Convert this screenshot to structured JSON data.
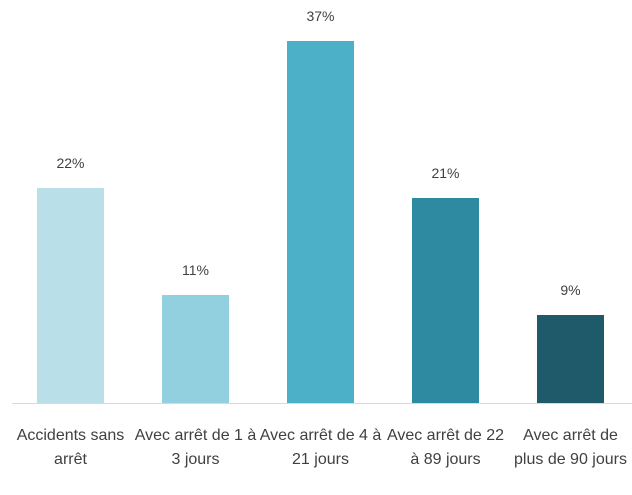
{
  "chart_data": {
    "type": "bar",
    "categories": [
      "Accidents sans arrêt",
      "Avec arrêt de 1 à 3 jours",
      "Avec arrêt de 4 à 21 jours",
      "Avec arrêt de 22 à 89 jours",
      "Avec arrêt de plus de 90 jours"
    ],
    "values": [
      22,
      11,
      37,
      21,
      9
    ],
    "value_labels": [
      "22%",
      "11%",
      "37%",
      "21%",
      "9%"
    ],
    "colors": [
      "#b9dfe8",
      "#92cfdf",
      "#4bb0c8",
      "#2e8aa0",
      "#1f5a6a"
    ]
  }
}
